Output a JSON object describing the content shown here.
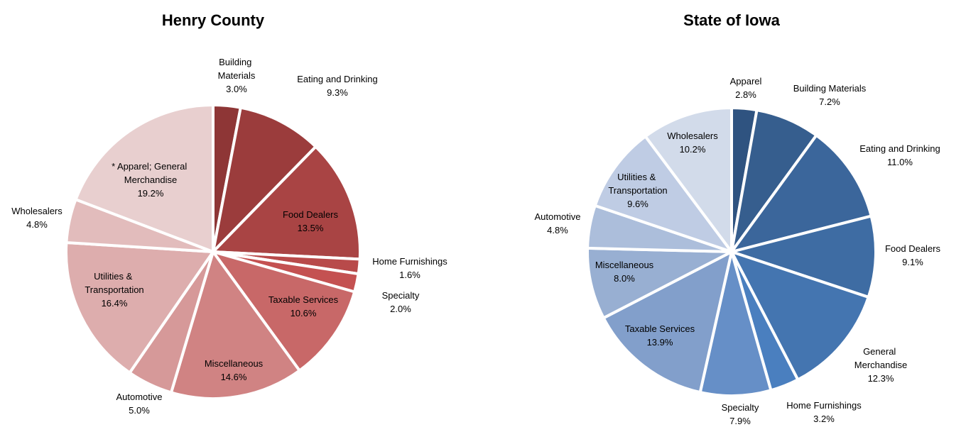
{
  "chart_data": [
    {
      "type": "pie",
      "title": "Henry County",
      "categories": [
        "Building Materials",
        "Eating and Drinking",
        "Food Dealers",
        "Home Furnishings",
        "Specialty",
        "Taxable Services",
        "Miscellaneous",
        "Automotive",
        "Utilities & Transportation",
        "Wholesalers",
        "* Apparel; General Merchandise"
      ],
      "values": [
        3.0,
        9.3,
        13.5,
        1.6,
        2.0,
        10.6,
        14.6,
        5.0,
        16.4,
        4.8,
        19.2
      ],
      "value_labels": [
        "3.0%",
        "9.3%",
        "13.5%",
        "1.6%",
        "2.0%",
        "10.6%",
        "14.6%",
        "5.0%",
        "16.4%",
        "4.8%",
        "19.2%"
      ],
      "colors": [
        "#8e3636",
        "#9b3c3c",
        "#a94444",
        "#b84a4a",
        "#c45151",
        "#c86868",
        "#d08383",
        "#d69999",
        "#ddadad",
        "#e2bcbc",
        "#e8cfcf"
      ]
    },
    {
      "type": "pie",
      "title": "State of Iowa",
      "categories": [
        "Apparel",
        "Building Materials",
        "Eating and Drinking",
        "Food Dealers",
        "General Merchandise",
        "Home Furnishings",
        "Specialty",
        "Taxable Services",
        "Miscellaneous",
        "Automotive",
        "Utilities & Transportation",
        "Wholesalers"
      ],
      "values": [
        2.8,
        7.2,
        11.0,
        9.1,
        12.3,
        3.2,
        7.9,
        13.9,
        8.0,
        4.8,
        9.6,
        10.2
      ],
      "value_labels": [
        "2.8%",
        "7.2%",
        "11.0%",
        "9.1%",
        "12.3%",
        "3.2%",
        "7.9%",
        "13.9%",
        "8.0%",
        "4.8%",
        "9.6%",
        "10.2%"
      ],
      "colors": [
        "#2f5380",
        "#365e8e",
        "#3b669b",
        "#3e6ca3",
        "#4475b0",
        "#4a7fbf",
        "#668fc7",
        "#829fcb",
        "#98afd2",
        "#acbedb",
        "#bfcce4",
        "#d2dbea"
      ]
    }
  ]
}
